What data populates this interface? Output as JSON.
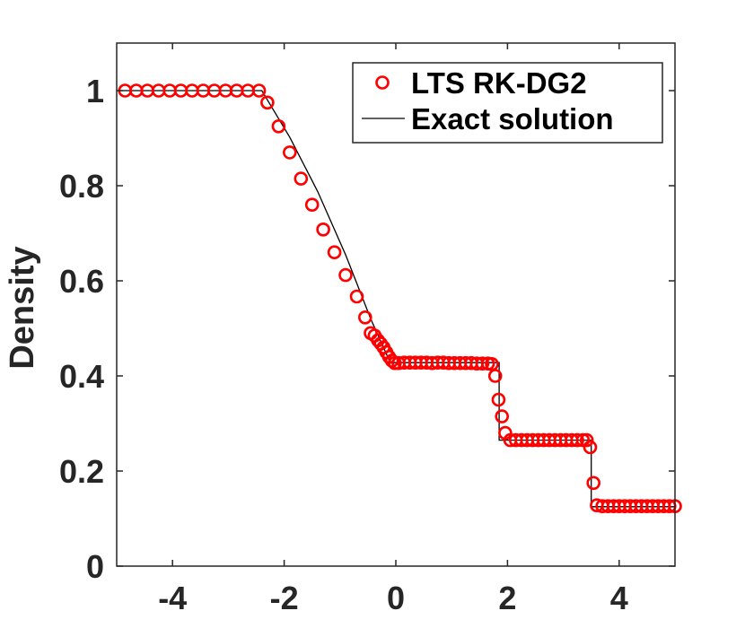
{
  "chart_data": {
    "type": "line",
    "title": "",
    "xlabel": "",
    "ylabel": "Density",
    "xlim": [
      -5,
      5
    ],
    "ylim": [
      0,
      1.1
    ],
    "x_ticks": [
      -4,
      -2,
      0,
      2,
      4
    ],
    "x_tick_labels": [
      "-4",
      "-2",
      "0",
      "2",
      "4"
    ],
    "y_ticks": [
      0,
      0.2,
      0.4,
      0.6,
      0.8,
      1
    ],
    "y_tick_labels": [
      "0",
      "0.2",
      "0.4",
      "0.6",
      "0.8",
      "1"
    ],
    "grid": false,
    "legend_position": "top-right",
    "colors": {
      "markers": "#ff0000",
      "exact_line": "#000000",
      "axes": "#262626"
    },
    "series": [
      {
        "name": "LTS RK-DG2",
        "kind": "scatter",
        "marker": "circle-open",
        "color": "#ff0000",
        "x": [
          -4.85,
          -4.65,
          -4.45,
          -4.25,
          -4.05,
          -3.85,
          -3.65,
          -3.45,
          -3.25,
          -3.05,
          -2.85,
          -2.65,
          -2.45,
          -2.3,
          -2.1,
          -1.9,
          -1.7,
          -1.5,
          -1.3,
          -1.1,
          -0.9,
          -0.7,
          -0.55,
          -0.45,
          -0.38,
          -0.32,
          -0.27,
          -0.22,
          -0.17,
          -0.12,
          -0.07,
          -0.02,
          0.05,
          0.15,
          0.25,
          0.35,
          0.45,
          0.55,
          0.65,
          0.75,
          0.85,
          0.95,
          1.05,
          1.15,
          1.25,
          1.35,
          1.45,
          1.55,
          1.65,
          1.72,
          1.78,
          1.84,
          1.9,
          1.96,
          2.05,
          2.15,
          2.25,
          2.35,
          2.45,
          2.55,
          2.65,
          2.75,
          2.85,
          2.95,
          3.05,
          3.15,
          3.25,
          3.35,
          3.42,
          3.48,
          3.54,
          3.6,
          3.7,
          3.8,
          3.9,
          4.0,
          4.1,
          4.2,
          4.3,
          4.4,
          4.5,
          4.6,
          4.7,
          4.8,
          4.9,
          5.0
        ],
        "y": [
          1,
          1,
          1,
          1,
          1,
          1,
          1,
          1,
          1,
          1,
          1,
          1,
          1,
          0.975,
          0.925,
          0.87,
          0.815,
          0.76,
          0.708,
          0.66,
          0.612,
          0.567,
          0.523,
          0.49,
          0.485,
          0.475,
          0.468,
          0.46,
          0.45,
          0.44,
          0.432,
          0.427,
          0.427,
          0.428,
          0.428,
          0.428,
          0.428,
          0.428,
          0.427,
          0.428,
          0.428,
          0.427,
          0.427,
          0.427,
          0.427,
          0.427,
          0.426,
          0.426,
          0.426,
          0.425,
          0.4,
          0.35,
          0.315,
          0.28,
          0.265,
          0.265,
          0.265,
          0.265,
          0.265,
          0.265,
          0.265,
          0.265,
          0.265,
          0.265,
          0.265,
          0.265,
          0.265,
          0.265,
          0.265,
          0.25,
          0.175,
          0.128,
          0.126,
          0.126,
          0.126,
          0.126,
          0.126,
          0.126,
          0.126,
          0.126,
          0.126,
          0.126,
          0.126,
          0.126,
          0.126,
          0.126
        ]
      },
      {
        "name": "Exact solution",
        "kind": "line",
        "color": "#000000",
        "x": [
          -5,
          -2.4,
          -1.9,
          -1.4,
          -0.9,
          -0.45,
          -0.1,
          0,
          1.3,
          1.85,
          1.85,
          3.5,
          3.5,
          5
        ],
        "y": [
          1,
          1,
          0.902,
          0.788,
          0.655,
          0.52,
          0.428,
          0.428,
          0.428,
          0.428,
          0.265,
          0.265,
          0.125,
          0.125
        ]
      }
    ]
  }
}
